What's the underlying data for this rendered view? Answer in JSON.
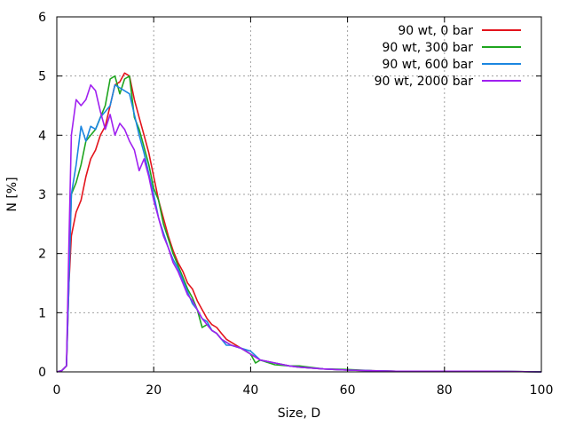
{
  "chart_data": {
    "type": "line",
    "title": "",
    "xlabel": "Size, D",
    "ylabel": "N [%]",
    "xlim": [
      0,
      100
    ],
    "ylim": [
      0,
      6
    ],
    "xticks": [
      "0",
      "20",
      "40",
      "60",
      "80",
      "100"
    ],
    "yticks": [
      "0",
      "1",
      "2",
      "3",
      "4",
      "5",
      "6"
    ],
    "grid": true,
    "legend_position": "top-right",
    "series": [
      {
        "name": "90 wt, 0 bar",
        "color": "#e3141c",
        "x": [
          0,
          1,
          2,
          2.5,
          3,
          4,
          5,
          6,
          7,
          8,
          9,
          10,
          11,
          12,
          13,
          14,
          15,
          16,
          17,
          18,
          19,
          20,
          21,
          22,
          23,
          24,
          25,
          26,
          27,
          28,
          29,
          30,
          31,
          32,
          33,
          34,
          35,
          36,
          38,
          40,
          42,
          45,
          48,
          50,
          55,
          60,
          65,
          70,
          80,
          90,
          100
        ],
        "y": [
          0,
          0.02,
          0.1,
          1.5,
          2.3,
          2.7,
          2.9,
          3.3,
          3.6,
          3.75,
          4.0,
          4.15,
          4.5,
          4.85,
          4.9,
          5.05,
          5.0,
          4.6,
          4.3,
          4.0,
          3.7,
          3.3,
          2.9,
          2.6,
          2.3,
          2.05,
          1.85,
          1.7,
          1.5,
          1.4,
          1.2,
          1.05,
          0.9,
          0.8,
          0.75,
          0.65,
          0.55,
          0.5,
          0.4,
          0.3,
          0.2,
          0.15,
          0.1,
          0.08,
          0.05,
          0.03,
          0.02,
          0.01,
          0.01,
          0.01,
          0
        ]
      },
      {
        "name": "90 wt, 300 bar",
        "color": "#1ea51e",
        "x": [
          0,
          1,
          2,
          2.5,
          3,
          4,
          5,
          6,
          7,
          8,
          9,
          10,
          11,
          12,
          13,
          14,
          15,
          16,
          17,
          18,
          19,
          20,
          21,
          22,
          23,
          24,
          25,
          26,
          27,
          28,
          29,
          30,
          31,
          32,
          33,
          34,
          35,
          36,
          38,
          40,
          41,
          42,
          45,
          48,
          50,
          55,
          60,
          65,
          70,
          80,
          90,
          100
        ],
        "y": [
          0,
          0.02,
          0.1,
          1.8,
          3.0,
          3.2,
          3.5,
          3.9,
          4.0,
          4.1,
          4.3,
          4.5,
          4.95,
          5.0,
          4.7,
          4.95,
          5.0,
          4.3,
          4.1,
          3.8,
          3.5,
          3.1,
          2.9,
          2.5,
          2.25,
          2.0,
          1.8,
          1.6,
          1.4,
          1.25,
          1.05,
          0.75,
          0.8,
          0.7,
          0.65,
          0.55,
          0.5,
          0.45,
          0.4,
          0.3,
          0.15,
          0.2,
          0.12,
          0.1,
          0.1,
          0.05,
          0.04,
          0.02,
          0.01,
          0.01,
          0.01,
          0
        ]
      },
      {
        "name": "90 wt, 600 bar",
        "color": "#1b86e0",
        "x": [
          0,
          1,
          2,
          2.5,
          3,
          4,
          5,
          6,
          7,
          8,
          9,
          10,
          11,
          12,
          13,
          14,
          15,
          16,
          17,
          18,
          19,
          20,
          21,
          22,
          23,
          24,
          25,
          26,
          27,
          28,
          29,
          30,
          31,
          32,
          33,
          34,
          35,
          36,
          38,
          40,
          42,
          45,
          48,
          50,
          55,
          60,
          65,
          70,
          80,
          90,
          100
        ],
        "y": [
          0,
          0.02,
          0.1,
          1.5,
          3.0,
          3.5,
          4.15,
          3.9,
          4.15,
          4.1,
          4.3,
          4.4,
          4.5,
          4.85,
          4.8,
          4.75,
          4.7,
          4.35,
          4.0,
          3.7,
          3.35,
          3.0,
          2.6,
          2.35,
          2.1,
          1.9,
          1.75,
          1.55,
          1.35,
          1.15,
          1.05,
          0.9,
          0.85,
          0.7,
          0.65,
          0.55,
          0.45,
          0.45,
          0.4,
          0.35,
          0.2,
          0.15,
          0.1,
          0.08,
          0.05,
          0.03,
          0.02,
          0.01,
          0.01,
          0.01,
          0
        ]
      },
      {
        "name": "90 wt, 2000 bar",
        "color": "#a020f0",
        "x": [
          0,
          1,
          2,
          2.5,
          3,
          4,
          5,
          6,
          7,
          8,
          9,
          10,
          11,
          12,
          13,
          14,
          15,
          16,
          17,
          18,
          19,
          20,
          21,
          22,
          23,
          24,
          25,
          26,
          27,
          28,
          29,
          30,
          31,
          32,
          33,
          34,
          35,
          36,
          38,
          40,
          42,
          45,
          48,
          50,
          55,
          60,
          65,
          70,
          80,
          90,
          100
        ],
        "y": [
          0,
          0.02,
          0.1,
          2.2,
          4.0,
          4.6,
          4.5,
          4.6,
          4.85,
          4.75,
          4.4,
          4.1,
          4.35,
          4.0,
          4.2,
          4.1,
          3.9,
          3.75,
          3.4,
          3.6,
          3.3,
          2.9,
          2.6,
          2.3,
          2.1,
          1.85,
          1.7,
          1.5,
          1.3,
          1.2,
          1.05,
          0.9,
          0.8,
          0.7,
          0.65,
          0.55,
          0.5,
          0.45,
          0.4,
          0.3,
          0.2,
          0.15,
          0.1,
          0.08,
          0.05,
          0.03,
          0.02,
          0.01,
          0.01,
          0.01,
          0
        ]
      }
    ]
  }
}
